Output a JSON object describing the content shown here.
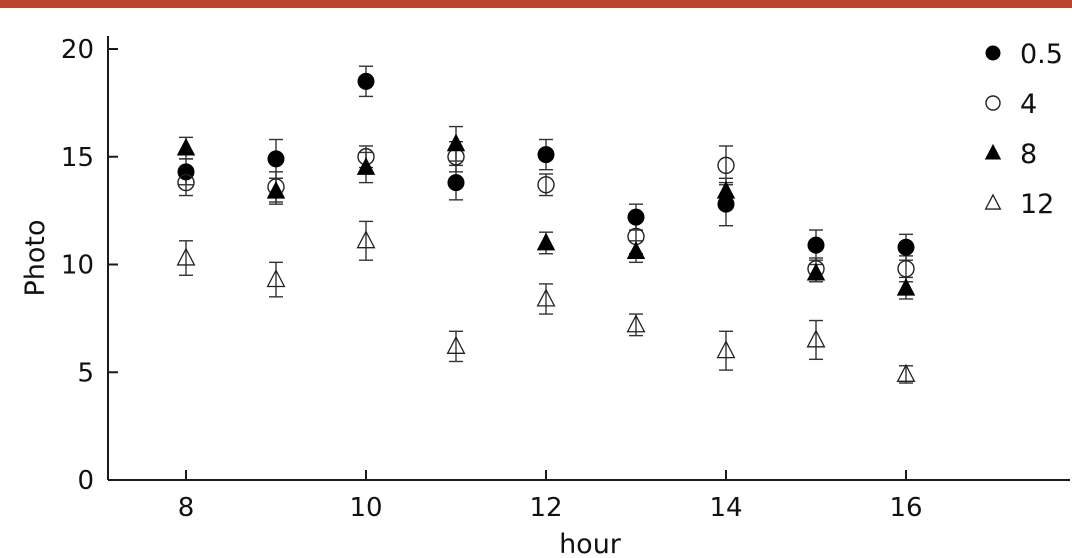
{
  "chart_data": {
    "type": "scatter",
    "title": "",
    "xlabel": "hour",
    "ylabel": "Photo",
    "xlim": [
      7.2,
      17.8
    ],
    "ylim": [
      0,
      20.8
    ],
    "x_ticks": [
      "8",
      "10",
      "12",
      "14",
      "16"
    ],
    "x_tick_values": [
      8,
      10,
      12,
      14,
      16
    ],
    "y_ticks": [
      "0",
      "5",
      "10",
      "15",
      "20"
    ],
    "y_tick_values": [
      0,
      5,
      10,
      15,
      20
    ],
    "grid": false,
    "legend_position": "top-right",
    "series": [
      {
        "name": "0.5",
        "marker": "filled-circle",
        "color": "#000000",
        "points": [
          {
            "x": 8,
            "y": 14.3,
            "err": 0.6
          },
          {
            "x": 9,
            "y": 14.9,
            "err": 0.9
          },
          {
            "x": 10,
            "y": 18.5,
            "err": 0.7
          },
          {
            "x": 11,
            "y": 13.8,
            "err": 0.8
          },
          {
            "x": 12,
            "y": 15.1,
            "err": 0.7
          },
          {
            "x": 13,
            "y": 12.2,
            "err": 0.6
          },
          {
            "x": 14,
            "y": 12.8,
            "err": 1.0
          },
          {
            "x": 15,
            "y": 10.9,
            "err": 0.7
          },
          {
            "x": 16,
            "y": 10.8,
            "err": 0.6
          }
        ]
      },
      {
        "name": "4",
        "marker": "open-circle",
        "color": "#000000",
        "points": [
          {
            "x": 8,
            "y": 13.8,
            "err": 0.6
          },
          {
            "x": 9,
            "y": 13.6,
            "err": 0.7
          },
          {
            "x": 10,
            "y": 15.0,
            "err": 0.5
          },
          {
            "x": 11,
            "y": 15.0,
            "err": 0.7
          },
          {
            "x": 12,
            "y": 13.7,
            "err": 0.5
          },
          {
            "x": 13,
            "y": 11.3,
            "err": 0.8
          },
          {
            "x": 14,
            "y": 14.6,
            "err": 0.9
          },
          {
            "x": 15,
            "y": 9.8,
            "err": 0.5
          },
          {
            "x": 16,
            "y": 9.8,
            "err": 0.6
          }
        ]
      },
      {
        "name": "8",
        "marker": "filled-triangle",
        "color": "#000000",
        "points": [
          {
            "x": 8,
            "y": 15.4,
            "err": 0.5
          },
          {
            "x": 9,
            "y": 13.4,
            "err": 0.6
          },
          {
            "x": 10,
            "y": 14.5,
            "err": 0.7
          },
          {
            "x": 11,
            "y": 15.6,
            "err": 0.8
          },
          {
            "x": 12,
            "y": 11.0,
            "err": 0.5
          },
          {
            "x": 13,
            "y": 10.6,
            "err": 0.5
          },
          {
            "x": 14,
            "y": 13.4,
            "err": 0.6
          },
          {
            "x": 15,
            "y": 9.6,
            "err": 0.4
          },
          {
            "x": 16,
            "y": 8.9,
            "err": 0.5
          }
        ]
      },
      {
        "name": "12",
        "marker": "open-triangle",
        "color": "#000000",
        "points": [
          {
            "x": 8,
            "y": 10.3,
            "err": 0.8
          },
          {
            "x": 9,
            "y": 9.3,
            "err": 0.8
          },
          {
            "x": 10,
            "y": 11.1,
            "err": 0.9
          },
          {
            "x": 11,
            "y": 6.2,
            "err": 0.7
          },
          {
            "x": 12,
            "y": 8.4,
            "err": 0.7
          },
          {
            "x": 13,
            "y": 7.2,
            "err": 0.5
          },
          {
            "x": 14,
            "y": 6.0,
            "err": 0.9
          },
          {
            "x": 15,
            "y": 6.5,
            "err": 0.9
          },
          {
            "x": 16,
            "y": 4.9,
            "err": 0.4
          }
        ]
      }
    ]
  },
  "colors": {
    "top_band": "#b8452c",
    "axis": "#1a1a1a",
    "error_bar": "#333333"
  }
}
